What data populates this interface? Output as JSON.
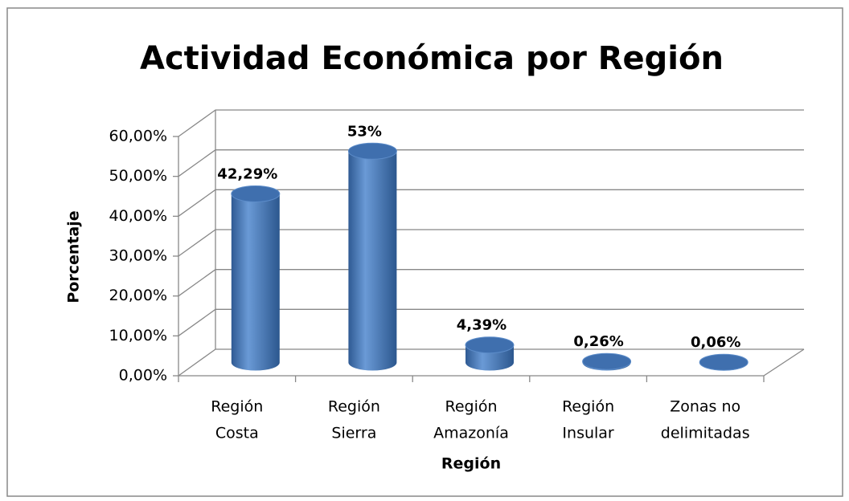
{
  "chart_data": {
    "type": "bar3d",
    "title": "Actividad Económica por Región",
    "x_label": "Región",
    "y_label": "Porcentaje",
    "categories": [
      [
        "Región",
        "Costa"
      ],
      [
        "Región",
        "Sierra"
      ],
      [
        "Región",
        "Amazonía"
      ],
      [
        "Región",
        "Insular"
      ],
      [
        "Zonas no",
        "delimitadas"
      ]
    ],
    "values": [
      42.29,
      53,
      4.39,
      0.26,
      0.06
    ],
    "value_labels": [
      "42,29%",
      "53%",
      "4,39%",
      "0,26%",
      "0,06%"
    ],
    "color": "#4f81bd",
    "ylim": [
      0,
      60
    ],
    "yticks": [
      {
        "value": 0,
        "label": "0,00%"
      },
      {
        "value": 10,
        "label": "10,00%"
      },
      {
        "value": 20,
        "label": "20,00%"
      },
      {
        "value": 30,
        "label": "30,00%"
      },
      {
        "value": 40,
        "label": "40,00%"
      },
      {
        "value": 50,
        "label": "50,00%"
      },
      {
        "value": 60,
        "label": "60,00%"
      }
    ],
    "grid": true
  }
}
